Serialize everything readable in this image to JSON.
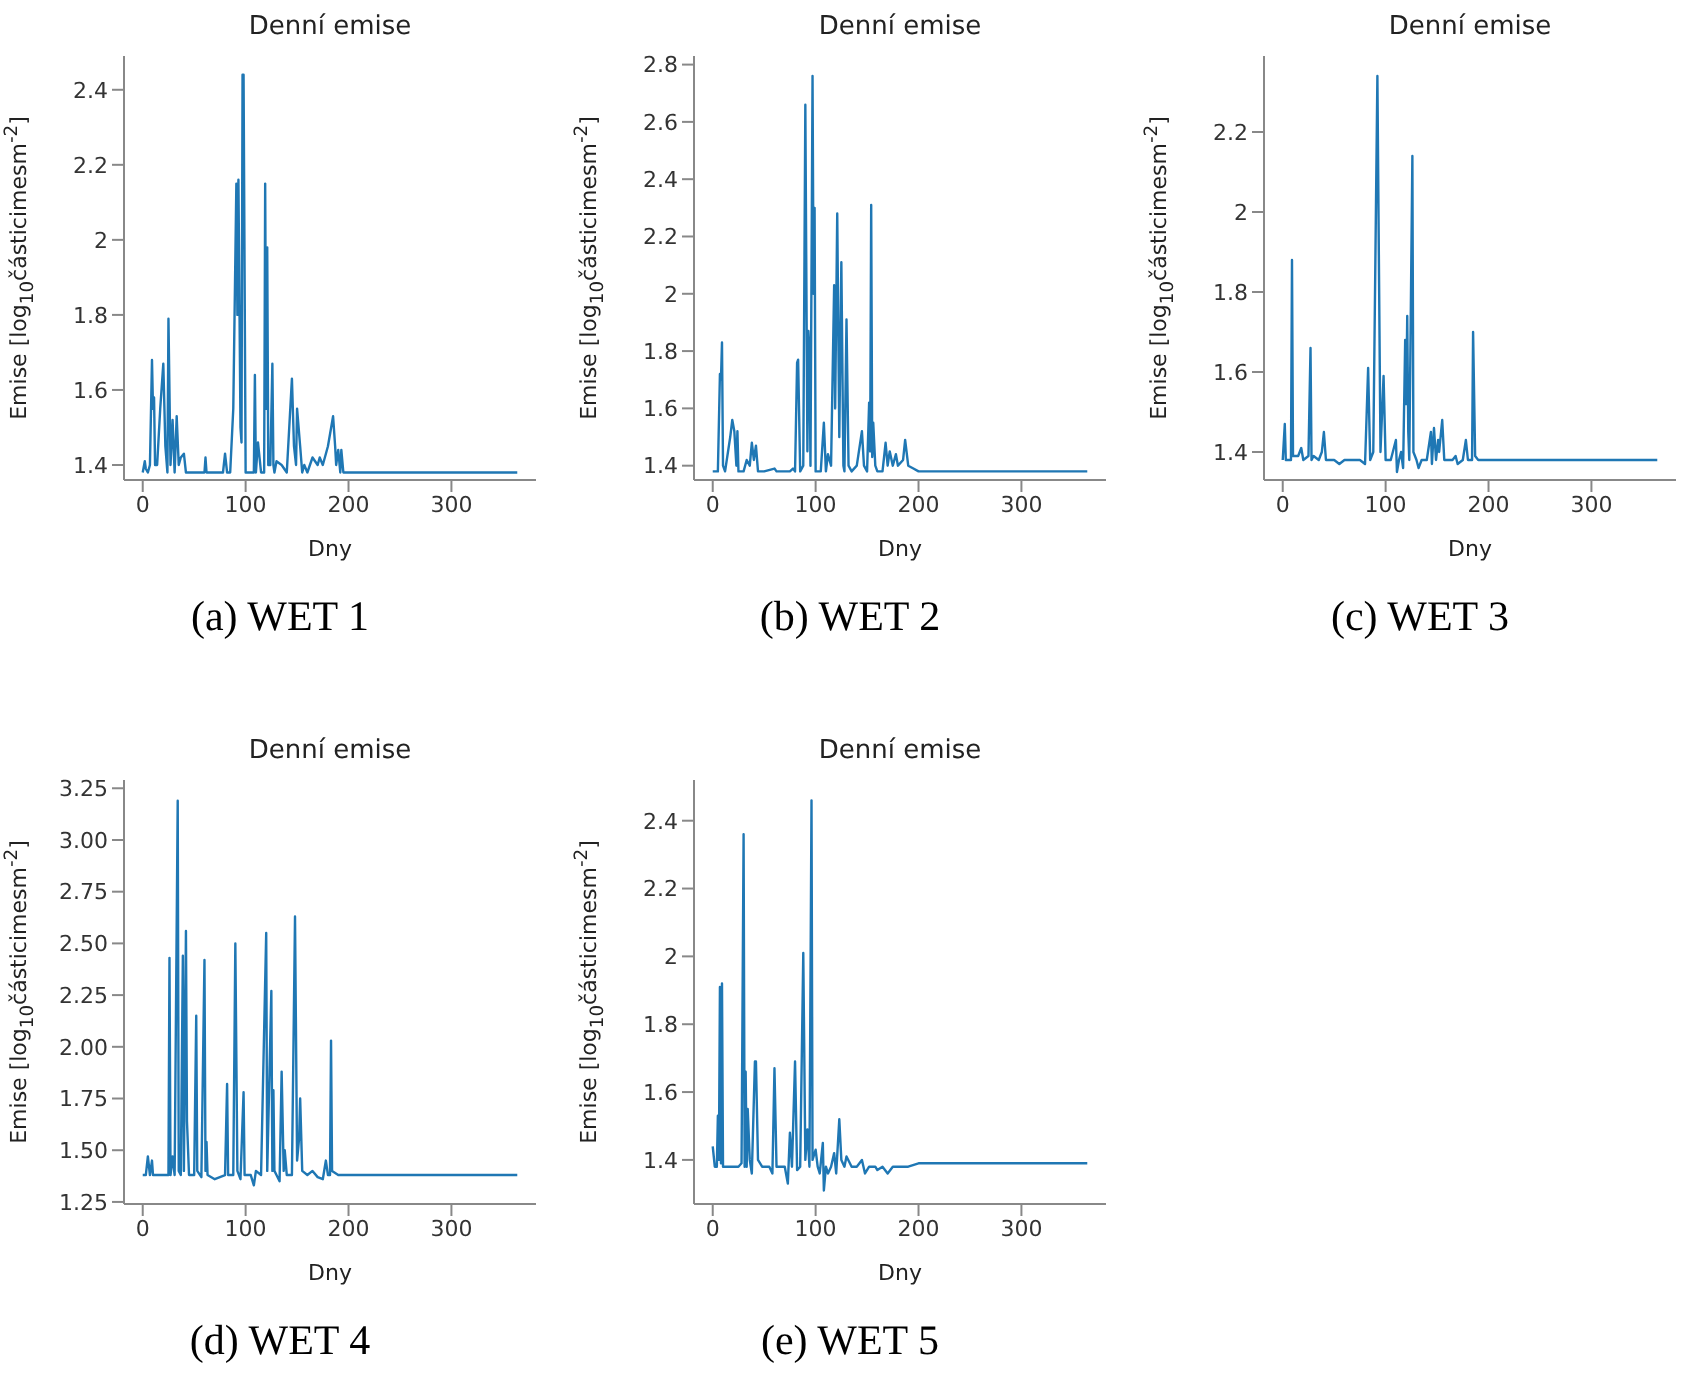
{
  "chart_data": [
    {
      "type": "line",
      "title": "Denní emise",
      "xlabel": "Dny",
      "ylabel": "Emise [log$_{10}$částicimesm$^{-2}$]",
      "annotations": [
        "(a) WET 1"
      ],
      "color": "#1f77b4",
      "xlim": [
        -18.2,
        382.2
      ],
      "xticks": [
        0,
        100,
        200,
        300
      ],
      "ylim": [
        1.36,
        2.49
      ],
      "yticks": [
        1.4,
        1.6,
        1.8,
        2.0,
        2.2,
        2.4
      ],
      "x": [
        0,
        2,
        3,
        5,
        7,
        9,
        10,
        11,
        12,
        14,
        17,
        20,
        22,
        24,
        25,
        27,
        29,
        31,
        33,
        35,
        37,
        40,
        42,
        45,
        60,
        61,
        62,
        78,
        80,
        82,
        85,
        88,
        91,
        92,
        93,
        95,
        96,
        97,
        98,
        100,
        105,
        108,
        109,
        110,
        112,
        115,
        118,
        119,
        120,
        121,
        122,
        124,
        126,
        127,
        128,
        130,
        135,
        140,
        145,
        147,
        149,
        150,
        153,
        155,
        157,
        160,
        165,
        170,
        172,
        175,
        180,
        185,
        187,
        188,
        190,
        192,
        193,
        195,
        200,
        364
      ],
      "values": [
        1.38,
        1.41,
        1.39,
        1.38,
        1.4,
        1.68,
        1.55,
        1.58,
        1.4,
        1.4,
        1.55,
        1.67,
        1.45,
        1.38,
        1.79,
        1.4,
        1.52,
        1.38,
        1.53,
        1.4,
        1.42,
        1.43,
        1.38,
        1.38,
        1.38,
        1.42,
        1.38,
        1.38,
        1.43,
        1.38,
        1.38,
        1.55,
        2.15,
        1.8,
        2.16,
        1.5,
        1.46,
        2.44,
        2.44,
        1.38,
        1.38,
        1.38,
        1.64,
        1.38,
        1.46,
        1.38,
        1.38,
        2.15,
        1.55,
        1.98,
        1.4,
        1.4,
        1.67,
        1.4,
        1.38,
        1.41,
        1.4,
        1.38,
        1.63,
        1.45,
        1.4,
        1.55,
        1.45,
        1.38,
        1.4,
        1.38,
        1.42,
        1.4,
        1.42,
        1.4,
        1.45,
        1.53,
        1.45,
        1.4,
        1.44,
        1.38,
        1.44,
        1.38,
        1.38,
        1.38
      ]
    },
    {
      "type": "line",
      "title": "Denní emise",
      "xlabel": "Dny",
      "ylabel": "Emise [log$_{10}$částicimesm$^{-2}$]",
      "annotations": [
        "(b) WET 2"
      ],
      "color": "#1f77b4",
      "xlim": [
        -18.2,
        382.2
      ],
      "xticks": [
        0,
        100,
        200,
        300
      ],
      "ylim": [
        1.35,
        2.83
      ],
      "yticks": [
        1.4,
        1.6,
        1.8,
        2.0,
        2.2,
        2.4,
        2.6,
        2.8
      ],
      "x": [
        0,
        5,
        7,
        8,
        9,
        10,
        12,
        17,
        19,
        21,
        23,
        24,
        25,
        30,
        33,
        36,
        38,
        40,
        42,
        44,
        50,
        60,
        62,
        75,
        78,
        80,
        82,
        83,
        85,
        88,
        90,
        92,
        93,
        94,
        95,
        97,
        98,
        99,
        100,
        105,
        108,
        110,
        112,
        115,
        118,
        119,
        121,
        123,
        125,
        127,
        128,
        130,
        132,
        135,
        140,
        145,
        147,
        150,
        152,
        153,
        154,
        155,
        156,
        158,
        160,
        165,
        168,
        170,
        172,
        175,
        178,
        180,
        185,
        187,
        190,
        195,
        200,
        364
      ],
      "values": [
        1.38,
        1.38,
        1.72,
        1.7,
        1.83,
        1.4,
        1.38,
        1.5,
        1.56,
        1.52,
        1.4,
        1.52,
        1.38,
        1.38,
        1.42,
        1.4,
        1.48,
        1.42,
        1.47,
        1.38,
        1.38,
        1.39,
        1.38,
        1.38,
        1.39,
        1.38,
        1.76,
        1.77,
        1.38,
        1.4,
        2.66,
        1.45,
        1.87,
        1.8,
        1.4,
        2.76,
        2.0,
        2.3,
        1.38,
        1.38,
        1.55,
        1.38,
        1.44,
        1.4,
        2.03,
        1.6,
        2.28,
        1.5,
        2.11,
        1.4,
        1.38,
        1.91,
        1.4,
        1.38,
        1.4,
        1.52,
        1.4,
        1.38,
        1.62,
        1.45,
        2.31,
        1.43,
        1.55,
        1.4,
        1.38,
        1.38,
        1.48,
        1.4,
        1.45,
        1.4,
        1.44,
        1.4,
        1.42,
        1.49,
        1.4,
        1.39,
        1.38,
        1.38
      ]
    },
    {
      "type": "line",
      "title": "Denní emise",
      "xlabel": "Dny",
      "ylabel": "Emise [log$_{10}$částicimesm$^{-2}$]",
      "annotations": [
        "(c) WET 3"
      ],
      "color": "#1f77b4",
      "xlim": [
        -18.2,
        382.2
      ],
      "xticks": [
        0,
        100,
        200,
        300
      ],
      "ylim": [
        1.33,
        2.39
      ],
      "yticks": [
        1.4,
        1.6,
        1.8,
        2.0,
        2.2
      ],
      "x": [
        0,
        2,
        3,
        8,
        9,
        10,
        15,
        18,
        20,
        25,
        27,
        28,
        30,
        35,
        38,
        40,
        42,
        50,
        55,
        60,
        75,
        80,
        83,
        85,
        88,
        92,
        95,
        98,
        100,
        105,
        110,
        111,
        113,
        115,
        117,
        119,
        120,
        121,
        122,
        123,
        126,
        127,
        130,
        132,
        135,
        140,
        144,
        145,
        147,
        149,
        151,
        152,
        155,
        157,
        165,
        168,
        170,
        175,
        178,
        180,
        184,
        185,
        187,
        190,
        200,
        364
      ],
      "values": [
        1.38,
        1.47,
        1.38,
        1.38,
        1.88,
        1.39,
        1.39,
        1.41,
        1.38,
        1.39,
        1.66,
        1.38,
        1.39,
        1.38,
        1.4,
        1.45,
        1.38,
        1.38,
        1.37,
        1.38,
        1.38,
        1.37,
        1.61,
        1.38,
        1.4,
        2.34,
        1.4,
        1.59,
        1.38,
        1.38,
        1.43,
        1.35,
        1.38,
        1.4,
        1.36,
        1.68,
        1.52,
        1.74,
        1.45,
        1.38,
        2.14,
        1.4,
        1.38,
        1.36,
        1.38,
        1.38,
        1.45,
        1.37,
        1.46,
        1.38,
        1.43,
        1.4,
        1.48,
        1.38,
        1.38,
        1.39,
        1.37,
        1.38,
        1.43,
        1.38,
        1.38,
        1.7,
        1.39,
        1.38,
        1.38,
        1.38
      ]
    },
    {
      "type": "line",
      "title": "Denní emise",
      "xlabel": "Dny",
      "ylabel": "Emise [log$_{10}$částicimesm$^{-2}$]",
      "annotations": [
        "(d) WET 4"
      ],
      "color": "#1f77b4",
      "xlim": [
        -18.2,
        382.2
      ],
      "xticks": [
        0,
        100,
        200,
        300
      ],
      "ylim": [
        1.24,
        3.29
      ],
      "yticks": [
        {
          "value": 1.25,
          "label": "1.25"
        },
        {
          "value": 1.5,
          "label": "1.50"
        },
        {
          "value": 1.75,
          "label": "1.75"
        },
        {
          "value": 2.0,
          "label": "2.00"
        },
        {
          "value": 2.25,
          "label": "2.25"
        },
        {
          "value": 2.5,
          "label": "2.50"
        },
        {
          "value": 2.75,
          "label": "2.75"
        },
        {
          "value": 3.0,
          "label": "3.00"
        },
        {
          "value": 3.25,
          "label": "3.25"
        }
      ],
      "x": [
        0,
        3,
        5,
        7,
        9,
        10,
        20,
        25,
        26,
        27,
        29,
        31,
        34,
        35,
        37,
        39,
        40,
        42,
        43,
        45,
        50,
        52,
        53,
        57,
        60,
        61,
        62,
        63,
        70,
        75,
        80,
        82,
        83,
        88,
        90,
        92,
        95,
        98,
        99,
        105,
        108,
        110,
        115,
        120,
        121,
        125,
        126,
        127,
        128,
        130,
        133,
        135,
        137,
        138,
        140,
        145,
        148,
        150,
        152,
        153,
        155,
        160,
        165,
        170,
        175,
        178,
        180,
        182,
        183,
        184,
        190,
        364
      ],
      "values": [
        1.38,
        1.38,
        1.47,
        1.38,
        1.45,
        1.38,
        1.38,
        1.38,
        2.43,
        1.38,
        1.47,
        1.38,
        3.19,
        1.4,
        1.38,
        2.44,
        1.4,
        2.56,
        1.64,
        1.38,
        1.38,
        2.15,
        1.4,
        1.37,
        2.42,
        1.4,
        1.54,
        1.38,
        1.36,
        1.37,
        1.38,
        1.82,
        1.38,
        1.38,
        2.5,
        1.4,
        1.36,
        1.78,
        1.38,
        1.38,
        1.33,
        1.4,
        1.38,
        2.55,
        1.4,
        2.27,
        1.4,
        1.79,
        1.4,
        1.38,
        1.35,
        1.88,
        1.4,
        1.5,
        1.38,
        1.38,
        2.63,
        1.45,
        1.56,
        1.75,
        1.4,
        1.38,
        1.4,
        1.37,
        1.36,
        1.45,
        1.38,
        1.38,
        2.03,
        1.4,
        1.38,
        1.38
      ]
    },
    {
      "type": "line",
      "title": "Denní emise",
      "xlabel": "Dny",
      "ylabel": "Emise [log$_{10}$částicimesm$^{-2}$]",
      "annotations": [
        "(e) WET 5"
      ],
      "color": "#1f77b4",
      "xlim": [
        -18.2,
        382.2
      ],
      "xticks": [
        0,
        100,
        200,
        300
      ],
      "ylim": [
        1.27,
        2.52
      ],
      "yticks": [
        1.4,
        1.6,
        1.8,
        2.0,
        2.2,
        2.4
      ],
      "x": [
        0,
        2,
        4,
        5,
        6,
        7,
        8,
        9,
        10,
        15,
        20,
        25,
        28,
        30,
        31,
        32,
        33,
        34,
        36,
        38,
        41,
        42,
        44,
        48,
        55,
        58,
        60,
        62,
        70,
        73,
        75,
        77,
        80,
        82,
        85,
        88,
        90,
        92,
        94,
        96,
        97,
        100,
        102,
        104,
        107,
        108,
        110,
        112,
        115,
        118,
        120,
        123,
        125,
        128,
        130,
        135,
        140,
        145,
        148,
        152,
        158,
        160,
        165,
        170,
        175,
        180,
        190,
        200,
        364
      ],
      "values": [
        1.44,
        1.38,
        1.38,
        1.53,
        1.4,
        1.91,
        1.39,
        1.92,
        1.38,
        1.38,
        1.38,
        1.38,
        1.39,
        2.36,
        1.38,
        1.66,
        1.38,
        1.55,
        1.4,
        1.36,
        1.69,
        1.69,
        1.4,
        1.38,
        1.38,
        1.36,
        1.67,
        1.38,
        1.38,
        1.33,
        1.48,
        1.38,
        1.69,
        1.37,
        1.38,
        2.01,
        1.4,
        1.49,
        1.38,
        2.46,
        1.4,
        1.43,
        1.38,
        1.36,
        1.45,
        1.31,
        1.38,
        1.36,
        1.38,
        1.42,
        1.36,
        1.52,
        1.4,
        1.38,
        1.41,
        1.38,
        1.38,
        1.4,
        1.36,
        1.38,
        1.38,
        1.37,
        1.38,
        1.36,
        1.38,
        1.38,
        1.38,
        1.39,
        1.39
      ]
    }
  ]
}
